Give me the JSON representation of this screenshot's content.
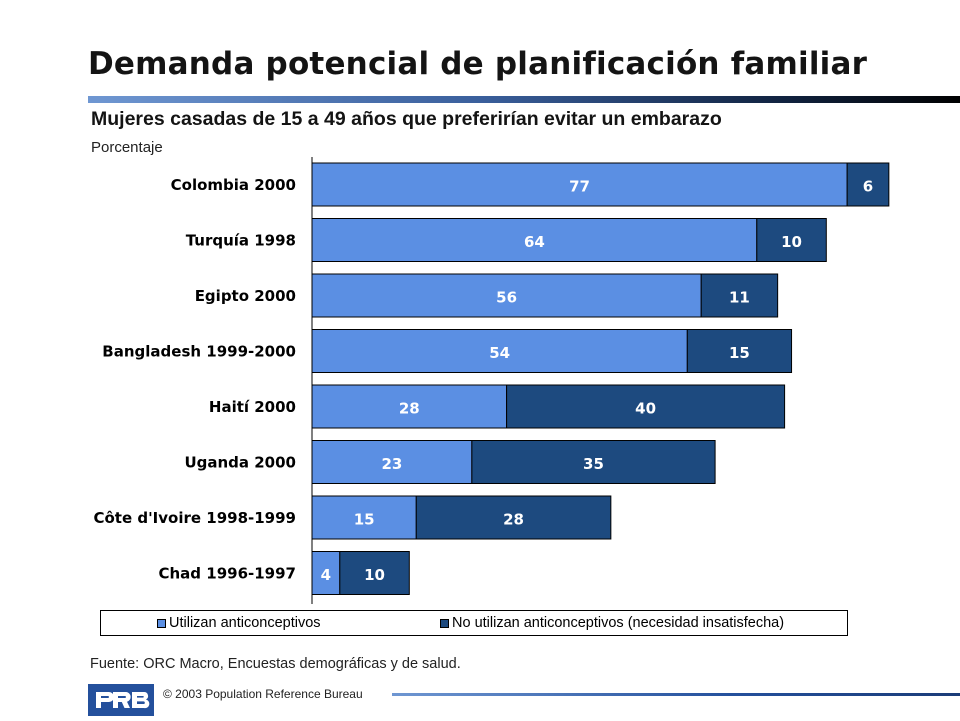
{
  "title": "Demanda potencial de planificación familiar",
  "subtitle": "Mujeres casadas de 15 a 49 años que preferirían evitar un embarazo",
  "chart_data": {
    "type": "bar",
    "orientation": "horizontal",
    "stacked": true,
    "title": "Demanda potencial de planificación familiar",
    "subtitle": "Mujeres casadas de 15 a 49 años que preferirían evitar un embarazo",
    "ylabel": "Porcentaje",
    "xlabel": "",
    "categories": [
      "Colombia 2000",
      "Turquía 1998",
      "Egipto 2000",
      "Bangladesh 1999-2000",
      "Haití 2000",
      "Uganda 2000",
      "Côte d'Ivoire 1998-1999",
      "Chad 1996-1997"
    ],
    "series": [
      {
        "name": "Utilizan anticonceptivos",
        "color": "#5b8fe3",
        "values": [
          77,
          64,
          56,
          54,
          28,
          23,
          15,
          4
        ]
      },
      {
        "name": "No utilizan anticonceptivos (necesidad insatisfecha)",
        "color": "#1d4a7f",
        "values": [
          6,
          10,
          11,
          15,
          40,
          35,
          28,
          10
        ]
      }
    ],
    "legend": "bottom",
    "grid": false,
    "data_labels": true
  },
  "source": "Fuente: ORC Macro, Encuestas demográficas y de salud.",
  "copyright": "© 2003 Population Reference Bureau",
  "logo_text": "PRB",
  "colors": {
    "accent": "#24509c",
    "light_bar": "#5b8fe3",
    "dark_bar": "#1d4a7f"
  }
}
